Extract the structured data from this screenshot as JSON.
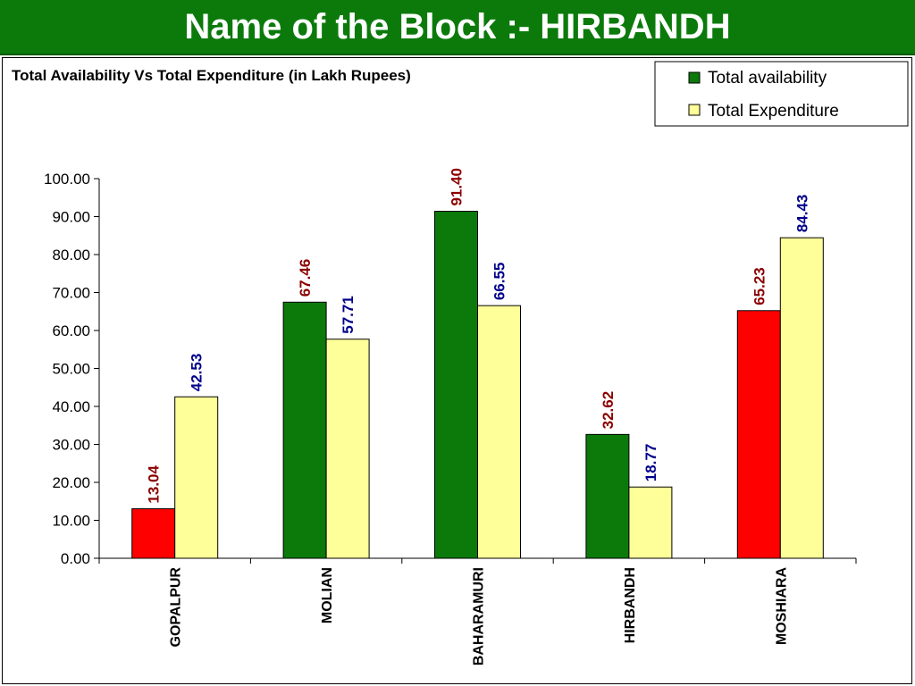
{
  "header": {
    "title": "Name of the Block :- HIRBANDH"
  },
  "chart_data": {
    "type": "bar",
    "title": "Total Availability Vs Total Expenditure (in Lakh Rupees)",
    "categories": [
      "GOPALPUR",
      "MOLIAN",
      "BAHARAMURI",
      "HIRBANDH",
      "MOSHIARA"
    ],
    "series": [
      {
        "name": "Total availability",
        "values": [
          13.04,
          67.46,
          91.4,
          32.62,
          65.23
        ],
        "value_labels": [
          "13.04",
          "67.46",
          "91.40",
          "32.62",
          "65.23"
        ],
        "color": "#0b7a0b",
        "bar_colors": [
          "#ff0000",
          "#0b7a0b",
          "#0b7a0b",
          "#0b7a0b",
          "#ff0000"
        ],
        "label_color": "#8b0000"
      },
      {
        "name": "Total Expenditure",
        "values": [
          42.53,
          57.71,
          66.55,
          18.77,
          84.43
        ],
        "value_labels": [
          "42.53",
          "57.71",
          "66.55",
          "18.77",
          "84.43"
        ],
        "color": "#ffff99",
        "bar_colors": [
          "#ffff99",
          "#ffff99",
          "#ffff99",
          "#ffff99",
          "#ffff99"
        ],
        "label_color": "#00008b"
      }
    ],
    "ylim": [
      0,
      100
    ],
    "y_ticks": [
      "0.00",
      "10.00",
      "20.00",
      "30.00",
      "40.00",
      "50.00",
      "60.00",
      "70.00",
      "80.00",
      "90.00",
      "100.00"
    ],
    "grid": false,
    "legend_position": "top-right"
  }
}
